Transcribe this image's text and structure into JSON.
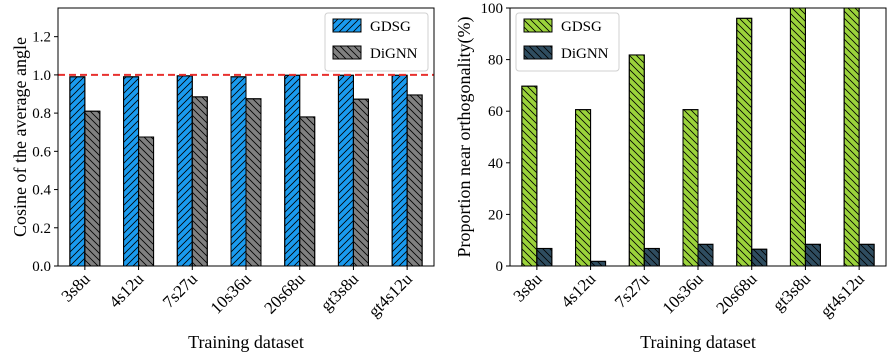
{
  "chart_data": [
    {
      "type": "bar",
      "xlabel": "Training dataset",
      "ylabel": "Cosine of the average angle",
      "categories": [
        "3s8u",
        "4s12u",
        "7s27u",
        "10s36u",
        "20s68u",
        "gt3s8u",
        "gt4s12u"
      ],
      "ylim": [
        0,
        1.35
      ],
      "yticks": [
        "0.0",
        "0.2",
        "0.4",
        "0.6",
        "0.8",
        "1.0",
        "1.2"
      ],
      "reference_line": {
        "y": 1.0,
        "color": "#e8312f",
        "style": "dashed"
      },
      "legend_position": "top-right",
      "grid": false,
      "series": [
        {
          "name": "GDSG",
          "values": [
            0.99,
            0.99,
            0.995,
            0.99,
            0.998,
            0.998,
            0.998
          ],
          "color": "#1a9bef",
          "hatch": "forward-diagonal"
        },
        {
          "name": "DiGNN",
          "values": [
            0.81,
            0.675,
            0.885,
            0.875,
            0.78,
            0.873,
            0.895
          ],
          "color": "#808080",
          "hatch": "back-diagonal"
        }
      ]
    },
    {
      "type": "bar",
      "xlabel": "Training dataset",
      "ylabel": "Proportion near orthogonality(%)",
      "categories": [
        "3s8u",
        "4s12u",
        "7s27u",
        "10s36u",
        "20s68u",
        "gt3s8u",
        "gt4s12u"
      ],
      "ylim": [
        0,
        100
      ],
      "yticks": [
        "0",
        "20",
        "40",
        "60",
        "80",
        "100"
      ],
      "legend_position": "top-left",
      "grid": false,
      "series": [
        {
          "name": "GDSG",
          "values": [
            69.7,
            60.6,
            81.8,
            60.6,
            96.0,
            100,
            100
          ],
          "color": "#9bd33b",
          "hatch": "back-diagonal"
        },
        {
          "name": "DiGNN",
          "values": [
            6.8,
            1.8,
            6.8,
            8.4,
            6.5,
            8.4,
            8.4
          ],
          "color": "#2f4d60",
          "hatch": "back-diagonal"
        }
      ]
    }
  ]
}
